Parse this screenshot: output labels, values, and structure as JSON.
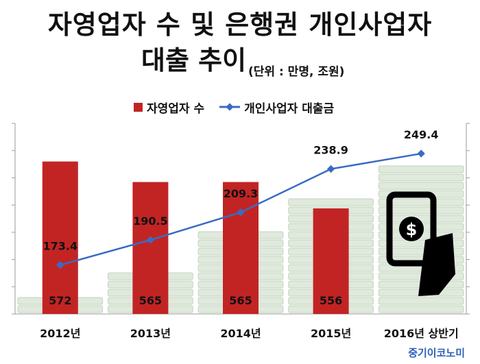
{
  "title": {
    "line1": "자영업자 수 및 은행권 개인사업자",
    "line2": "대출 추이",
    "unit": "(단위 : 만명, 조원)"
  },
  "watermark": "중기이코노미",
  "colors": {
    "bar": "#c22424",
    "line": "#3a6bc4",
    "background_art": "#9fb89a"
  },
  "chart_data": {
    "type": "bar",
    "categories": [
      "2012년",
      "2013년",
      "2014년",
      "2015년",
      "2016년 상반기"
    ],
    "legend_position": "top",
    "grid": false,
    "series": [
      {
        "name": "자영업자 수",
        "type": "bar",
        "values": [
          572,
          565,
          565,
          556,
          null
        ],
        "label_position": "bottom"
      },
      {
        "name": "개인사업자 대출금",
        "type": "line",
        "values": [
          173.4,
          190.5,
          209.3,
          238.9,
          249.4
        ],
        "label_position": "above"
      }
    ]
  }
}
